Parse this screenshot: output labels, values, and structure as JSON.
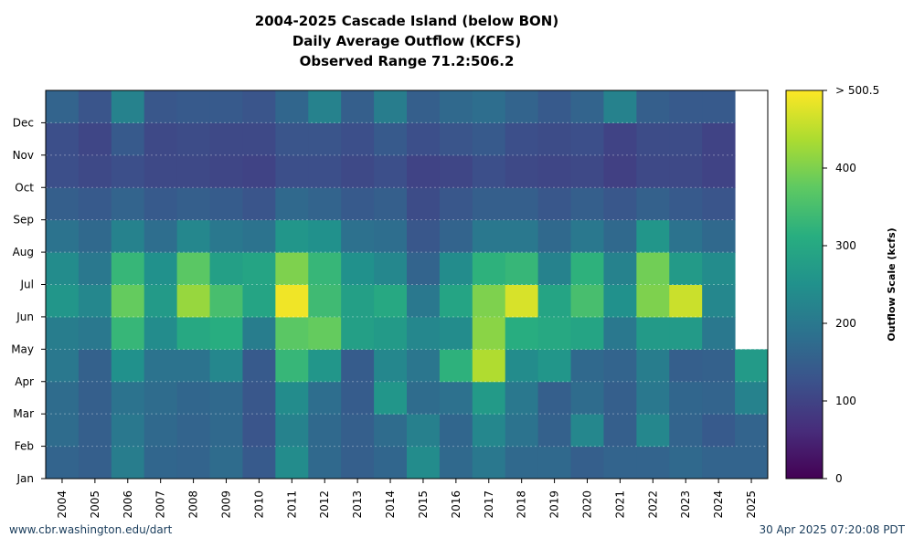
{
  "title": {
    "line1": "2004-2025 Cascade Island (below BON)",
    "line2": "Daily Average Outflow (KCFS)",
    "line3": "Observed Range 71.2:506.2"
  },
  "footer": {
    "left": "www.cbr.washington.edu/dart",
    "right": "30 Apr 2025 07:20:08 PDT"
  },
  "chart_data": {
    "type": "heatmap",
    "x": [
      "2004",
      "2005",
      "2006",
      "2007",
      "2008",
      "2009",
      "2010",
      "2011",
      "2012",
      "2013",
      "2014",
      "2015",
      "2016",
      "2017",
      "2018",
      "2019",
      "2020",
      "2021",
      "2022",
      "2023",
      "2024",
      "2025"
    ],
    "y": [
      "Jan",
      "Feb",
      "Mar",
      "Apr",
      "May",
      "Jun",
      "Jul",
      "Aug",
      "Sep",
      "Oct",
      "Nov",
      "Dec"
    ],
    "colorbar": {
      "label": "Outflow Scale (kcfs)",
      "range": [
        0,
        500
      ],
      "ticks": [
        "0",
        "100",
        "200",
        "300",
        "400",
        "> 500.5"
      ]
    },
    "values": [
      [
        160,
        175,
        175,
        200,
        210,
        260,
        240,
        190,
        150,
        120,
        120,
        160
      ],
      [
        150,
        150,
        150,
        155,
        200,
        230,
        200,
        170,
        140,
        110,
        105,
        130
      ],
      [
        210,
        200,
        190,
        250,
        330,
        380,
        330,
        220,
        160,
        120,
        140,
        220
      ],
      [
        165,
        170,
        175,
        190,
        240,
        270,
        250,
        180,
        140,
        110,
        110,
        135
      ],
      [
        160,
        160,
        165,
        190,
        300,
        420,
        370,
        230,
        150,
        110,
        115,
        140
      ],
      [
        175,
        170,
        170,
        230,
        310,
        350,
        280,
        200,
        145,
        105,
        110,
        140
      ],
      [
        140,
        130,
        135,
        140,
        210,
        290,
        290,
        190,
        130,
        100,
        110,
        130
      ],
      [
        240,
        220,
        240,
        330,
        370,
        490,
        400,
        260,
        170,
        120,
        130,
        165
      ],
      [
        170,
        170,
        180,
        260,
        380,
        340,
        330,
        250,
        160,
        120,
        130,
        220
      ],
      [
        150,
        150,
        145,
        145,
        280,
        280,
        250,
        185,
        140,
        110,
        120,
        150
      ],
      [
        165,
        175,
        260,
        230,
        270,
        300,
        230,
        180,
        150,
        120,
        140,
        210
      ],
      [
        240,
        215,
        175,
        195,
        230,
        200,
        160,
        135,
        115,
        100,
        120,
        150
      ],
      [
        170,
        165,
        185,
        320,
        240,
        290,
        240,
        160,
        135,
        105,
        130,
        170
      ],
      [
        200,
        230,
        270,
        440,
        410,
        400,
        320,
        200,
        150,
        120,
        140,
        180
      ],
      [
        170,
        190,
        200,
        240,
        310,
        470,
        330,
        200,
        150,
        110,
        120,
        160
      ],
      [
        170,
        155,
        150,
        260,
        300,
        290,
        220,
        170,
        135,
        105,
        115,
        140
      ],
      [
        150,
        230,
        175,
        170,
        290,
        350,
        320,
        200,
        150,
        110,
        120,
        160
      ],
      [
        160,
        150,
        150,
        160,
        200,
        250,
        220,
        170,
        135,
        95,
        100,
        220
      ],
      [
        160,
        230,
        200,
        210,
        270,
        400,
        390,
        260,
        155,
        110,
        115,
        150
      ],
      [
        170,
        160,
        165,
        150,
        270,
        460,
        270,
        190,
        140,
        110,
        115,
        140
      ],
      [
        160,
        140,
        160,
        155,
        200,
        230,
        240,
        170,
        130,
        100,
        100,
        140
      ],
      [
        160,
        160,
        220,
        270,
        null,
        null,
        null,
        null,
        null,
        null,
        null,
        null
      ]
    ]
  }
}
